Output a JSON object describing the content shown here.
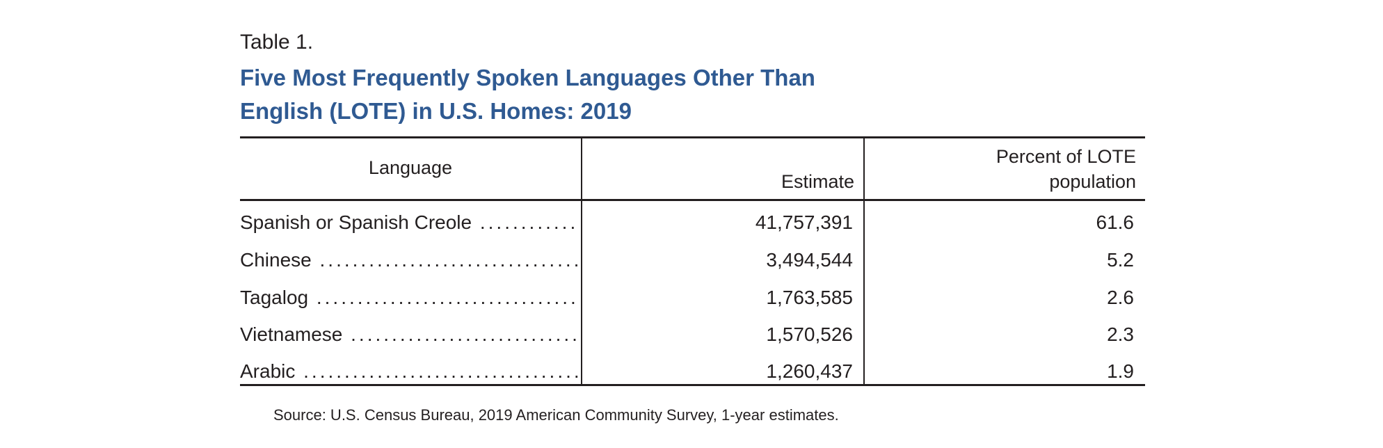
{
  "table_label": "Table 1.",
  "title_line1": "Five Most Frequently Spoken Languages Other Than",
  "title_line2": "English (LOTE) in U.S. Homes: 2019",
  "columns": {
    "language": "Language",
    "estimate": "Estimate",
    "percent_line1": "Percent of LOTE",
    "percent_line2": "population"
  },
  "rows": [
    {
      "language": "Spanish or Spanish Creole",
      "estimate": "41,757,391",
      "percent": "61.6"
    },
    {
      "language": "Chinese",
      "estimate": "3,494,544",
      "percent": "5.2"
    },
    {
      "language": "Tagalog",
      "estimate": "1,763,585",
      "percent": "2.6"
    },
    {
      "language": "Vietnamese",
      "estimate": "1,570,526",
      "percent": "2.3"
    },
    {
      "language": "Arabic",
      "estimate": "1,260,437",
      "percent": "1.9"
    }
  ],
  "source": "Source: U.S. Census Bureau, 2019 American Community Survey, 1-year estimates.",
  "colors": {
    "title": "#2f5a92",
    "text": "#231f20"
  }
}
